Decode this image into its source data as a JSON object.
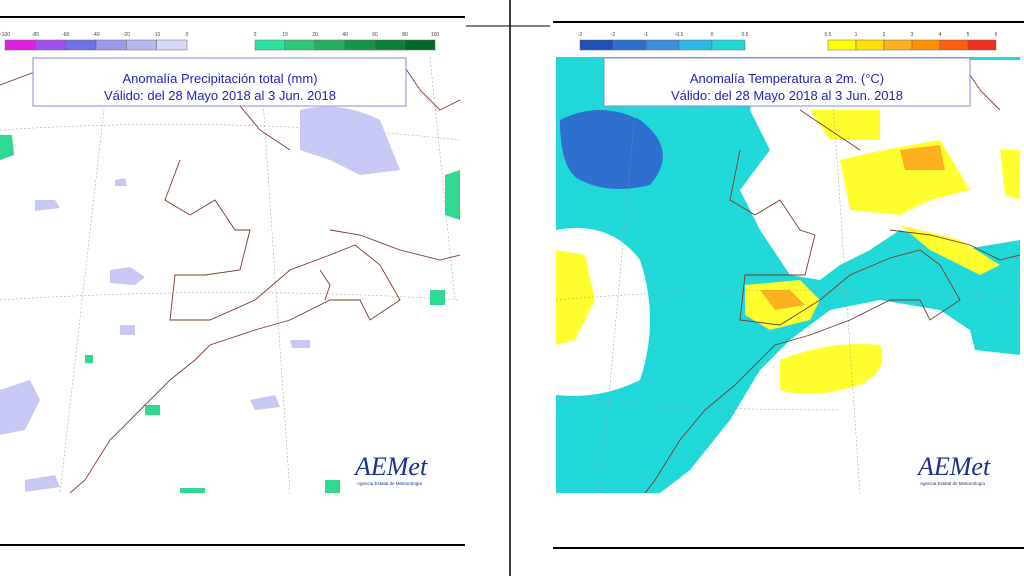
{
  "panels": [
    {
      "title": "Anomalía Precipitación total (mm)",
      "subtitle": "Válido: del 28 Mayo 2018 al 3 Jun. 2018",
      "legends": [
        {
          "labels": [
            "-100",
            "-80",
            "-60",
            "-40",
            "-20",
            "-10",
            "0"
          ],
          "colors": [
            "#e020e0",
            "#a050f0",
            "#7070e8",
            "#9898ec",
            "#b8b8f0",
            "#d8d8f8"
          ]
        },
        {
          "labels": [
            "0",
            "10",
            "20",
            "40",
            "60",
            "80",
            "100"
          ],
          "colors": [
            "#30e0a0",
            "#30c878",
            "#20b060",
            "#109848",
            "#088038",
            "#006828"
          ]
        }
      ],
      "logo": "AEMet",
      "agency": "Agencia Estatal de Meteorología"
    },
    {
      "title": "Anomalía Temperatura a 2m. (°C)",
      "subtitle": "Válido: del 28 Mayo 2018 al 3 Jun. 2018",
      "legends": [
        {
          "labels": [
            "-3",
            "-2",
            "-1",
            "-0.5",
            "0",
            "0.5"
          ],
          "colors": [
            "#1f4fb8",
            "#2f6fd0",
            "#3a8fe0",
            "#30b8e8",
            "#20d8d8"
          ]
        },
        {
          "labels": [
            "0.5",
            "1",
            "2",
            "3",
            "4",
            "5",
            "6"
          ],
          "colors": [
            "#ffff00",
            "#ffe000",
            "#ffb020",
            "#ff9000",
            "#ff6010",
            "#f03020"
          ]
        }
      ],
      "logo": "AEMet",
      "agency": "Agencia Estatal de Meteorología"
    }
  ]
}
